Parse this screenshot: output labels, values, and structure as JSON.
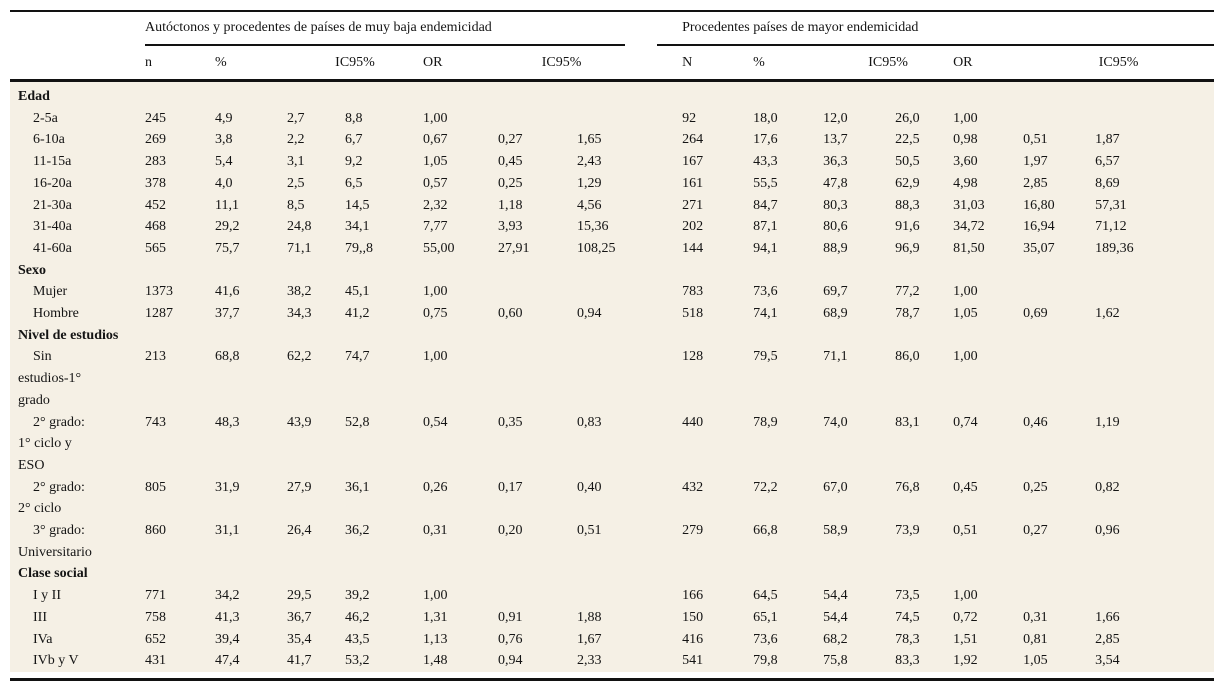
{
  "colors": {
    "table_body_bg": "#f5f0e5",
    "rule": "#121212",
    "page_bg": "#ffffff"
  },
  "table": {
    "groups": [
      {
        "title": "Autóctonos y procedentes de países de muy baja endemicidad",
        "columns": [
          "n",
          "%",
          "IC95%",
          "OR",
          "IC95%"
        ]
      },
      {
        "title": "Procedentes países de mayor endemicidad",
        "columns": [
          "N",
          "%",
          "IC95%",
          "OR",
          "IC95%"
        ]
      }
    ],
    "sections": [
      {
        "label": "Edad",
        "rows": [
          {
            "label": "2-5a",
            "left": [
              "245",
              "4,9",
              "2,7",
              "8,8",
              "1,00",
              "",
              ""
            ],
            "right": [
              "92",
              "18,0",
              "12,0",
              "26,0",
              "1,00",
              "",
              ""
            ]
          },
          {
            "label": "6-10a",
            "left": [
              "269",
              "3,8",
              "2,2",
              "6,7",
              "0,67",
              "0,27",
              "1,65"
            ],
            "right": [
              "264",
              "17,6",
              "13,7",
              "22,5",
              "0,98",
              "0,51",
              "1,87"
            ]
          },
          {
            "label": "11-15a",
            "left": [
              "283",
              "5,4",
              "3,1",
              "9,2",
              "1,05",
              "0,45",
              "2,43"
            ],
            "right": [
              "167",
              "43,3",
              "36,3",
              "50,5",
              "3,60",
              "1,97",
              "6,57"
            ]
          },
          {
            "label": "16-20a",
            "left": [
              "378",
              "4,0",
              "2,5",
              "6,5",
              "0,57",
              "0,25",
              "1,29"
            ],
            "right": [
              "161",
              "55,5",
              "47,8",
              "62,9",
              "4,98",
              "2,85",
              "8,69"
            ]
          },
          {
            "label": "21-30a",
            "left": [
              "452",
              "11,1",
              "8,5",
              "14,5",
              "2,32",
              "1,18",
              "4,56"
            ],
            "right": [
              "271",
              "84,7",
              "80,3",
              "88,3",
              "31,03",
              "16,80",
              "57,31"
            ]
          },
          {
            "label": "31-40a",
            "left": [
              "468",
              "29,2",
              "24,8",
              "34,1",
              "7,77",
              "3,93",
              "15,36"
            ],
            "right": [
              "202",
              "87,1",
              "80,6",
              "91,6",
              "34,72",
              "16,94",
              "71,12"
            ]
          },
          {
            "label": "41-60a",
            "left": [
              "565",
              "75,7",
              "71,1",
              "79,,8",
              "55,00",
              "27,91",
              "108,25"
            ],
            "right": [
              "144",
              "94,1",
              "88,9",
              "96,9",
              "81,50",
              "35,07",
              "189,36"
            ]
          }
        ]
      },
      {
        "label": "Sexo",
        "rows": [
          {
            "label": "Mujer",
            "left": [
              "1373",
              "41,6",
              "38,2",
              "45,1",
              "1,00",
              "",
              ""
            ],
            "right": [
              "783",
              "73,6",
              "69,7",
              "77,2",
              "1,00",
              "",
              ""
            ]
          },
          {
            "label": "Hombre",
            "left": [
              "1287",
              "37,7",
              "34,3",
              "41,2",
              "0,75",
              "0,60",
              "0,94"
            ],
            "right": [
              "518",
              "74,1",
              "68,9",
              "78,7",
              "1,05",
              "0,69",
              "1,62"
            ]
          }
        ]
      },
      {
        "label": "Nivel de estudios",
        "rows": [
          {
            "label": "Sin\nestudios-1°\ngrado",
            "left": [
              "213",
              "68,8",
              "62,2",
              "74,7",
              "1,00",
              "",
              ""
            ],
            "right": [
              "128",
              "79,5",
              "71,1",
              "86,0",
              "1,00",
              "",
              ""
            ]
          },
          {
            "label": "2° grado:\n1° ciclo y\nESO",
            "left": [
              "743",
              "48,3",
              "43,9",
              "52,8",
              "0,54",
              "0,35",
              "0,83"
            ],
            "right": [
              "440",
              "78,9",
              "74,0",
              "83,1",
              "0,74",
              "0,46",
              "1,19"
            ]
          },
          {
            "label": "2° grado:\n2° ciclo",
            "left": [
              "805",
              "31,9",
              "27,9",
              "36,1",
              "0,26",
              "0,17",
              "0,40"
            ],
            "right": [
              "432",
              "72,2",
              "67,0",
              "76,8",
              "0,45",
              "0,25",
              "0,82"
            ]
          },
          {
            "label": "3° grado:\nUniversitario",
            "left": [
              "860",
              "31,1",
              "26,4",
              "36,2",
              "0,31",
              "0,20",
              "0,51"
            ],
            "right": [
              "279",
              "66,8",
              "58,9",
              "73,9",
              "0,51",
              "0,27",
              "0,96"
            ]
          }
        ]
      },
      {
        "label": "Clase social",
        "rows": [
          {
            "label": "I y II",
            "left": [
              "771",
              "34,2",
              "29,5",
              "39,2",
              "1,00",
              "",
              ""
            ],
            "right": [
              "166",
              "64,5",
              "54,4",
              "73,5",
              "1,00",
              "",
              ""
            ]
          },
          {
            "label": "III",
            "left": [
              "758",
              "41,3",
              "36,7",
              "46,2",
              "1,31",
              "0,91",
              "1,88"
            ],
            "right": [
              "150",
              "65,1",
              "54,4",
              "74,5",
              "0,72",
              "0,31",
              "1,66"
            ]
          },
          {
            "label": "IVa",
            "left": [
              "652",
              "39,4",
              "35,4",
              "43,5",
              "1,13",
              "0,76",
              "1,67"
            ],
            "right": [
              "416",
              "73,6",
              "68,2",
              "78,3",
              "1,51",
              "0,81",
              "2,85"
            ]
          },
          {
            "label": "IVb y V",
            "left": [
              "431",
              "47,4",
              "41,7",
              "53,2",
              "1,48",
              "0,94",
              "2,33"
            ],
            "right": [
              "541",
              "79,8",
              "75,8",
              "83,3",
              "1,92",
              "1,05",
              "3,54"
            ]
          }
        ]
      }
    ]
  }
}
